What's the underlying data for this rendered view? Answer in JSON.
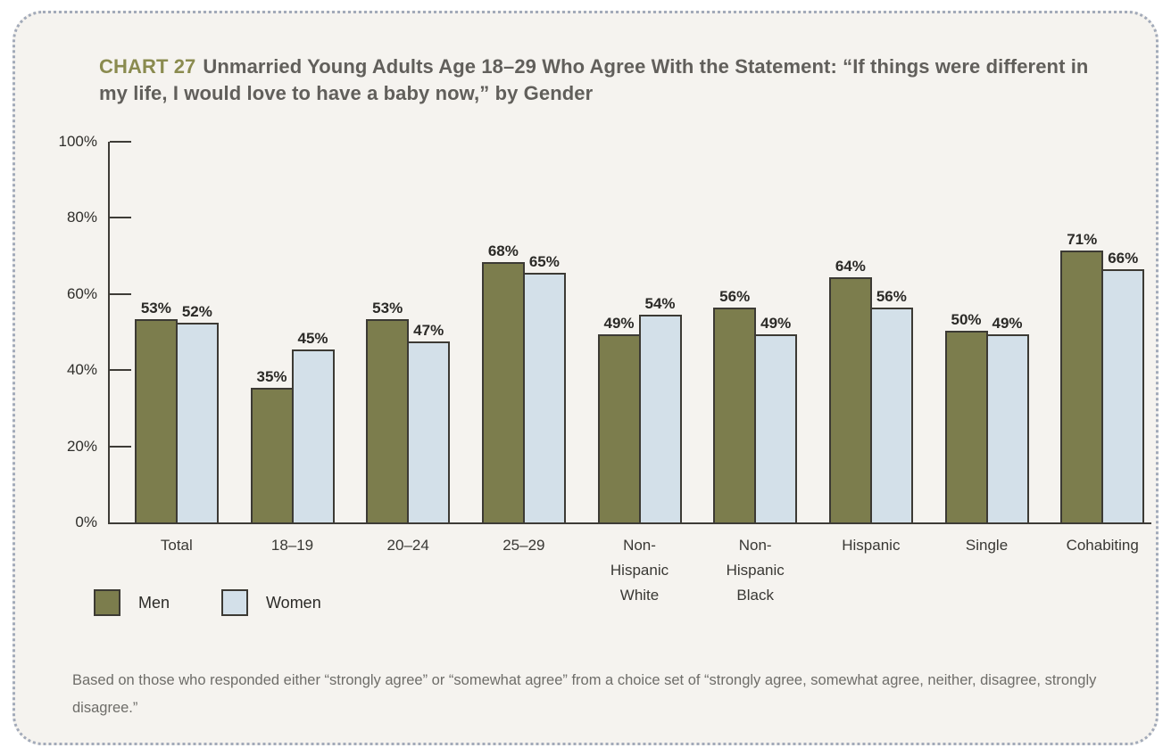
{
  "header": {
    "tag": "CHART 27",
    "title": "Unmarried Young Adults Age 18–29 Who Agree With the Statement: “If things were different in my life, I would love to have a baby now,” by Gender"
  },
  "chart_data": {
    "type": "bar",
    "title": "Unmarried Young Adults Age 18–29 Who Agree With the Statement: “If things were different in my life, I would love to have a baby now,” by Gender",
    "categories": [
      "Total",
      "18–19",
      "20–24",
      "25–29",
      "Non-\nHispanic\nWhite",
      "Non-\nHispanic\nBlack",
      "Hispanic",
      "Single",
      "Cohabiting"
    ],
    "series": [
      {
        "name": "Men",
        "color": "#7c7d4d",
        "values": [
          53,
          35,
          53,
          68,
          49,
          56,
          64,
          50,
          71
        ]
      },
      {
        "name": "Women",
        "color": "#d3e0e9",
        "values": [
          52,
          45,
          47,
          65,
          54,
          49,
          56,
          49,
          66
        ]
      }
    ],
    "value_suffix": "%",
    "ylim": [
      0,
      100
    ],
    "y_ticks": [
      0,
      20,
      40,
      60,
      80,
      100
    ],
    "y_tick_suffix": "%",
    "grid": false,
    "legend_position": "bottom-left"
  },
  "footnote": "Based on those who responded either “strongly agree” or “somewhat agree” from a choice set of “strongly agree, somewhat agree, neither, disagree, strongly disagree.”",
  "colors": {
    "card_background": "#f5f3ef",
    "card_border": "#a2aab9",
    "men_bar": "#7c7d4d",
    "women_bar": "#d3e0e9",
    "bar_border": "#3c3a34",
    "axis": "#3e3c37",
    "chart_tag": "#8a8b4f",
    "title_text": "#615f5b"
  }
}
